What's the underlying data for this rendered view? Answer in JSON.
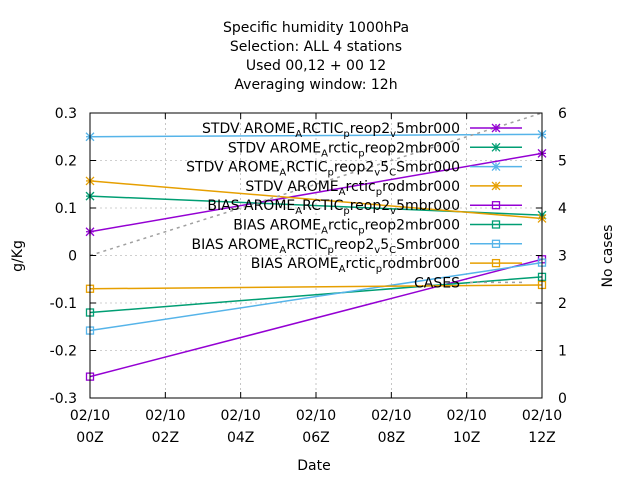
{
  "chart_data": {
    "type": "line",
    "title_lines": [
      "Specific humidity 1000hPa",
      "Selection: ALL      4 stations",
      "Used  00,12  + 00 12",
      "Averaging window: 12h"
    ],
    "xlabel": "Date",
    "ylabel": "g/Kg",
    "y2label": "No cases",
    "x_ticks": [
      {
        "x": 0,
        "line1": "02/10",
        "line2": "00Z"
      },
      {
        "x": 2,
        "line1": "02/10",
        "line2": "02Z"
      },
      {
        "x": 4,
        "line1": "02/10",
        "line2": "04Z"
      },
      {
        "x": 6,
        "line1": "02/10",
        "line2": "06Z"
      },
      {
        "x": 8,
        "line1": "02/10",
        "line2": "08Z"
      },
      {
        "x": 10,
        "line1": "02/10",
        "line2": "10Z"
      },
      {
        "x": 12,
        "line1": "02/10",
        "line2": "12Z"
      }
    ],
    "xlim": [
      0,
      12
    ],
    "ylim": [
      -0.3,
      0.3
    ],
    "y_ticks": [
      "-0.3",
      "-0.2",
      "-0.1",
      "0",
      "0.1",
      "0.2",
      "0.3"
    ],
    "y2lim": [
      0,
      6
    ],
    "y2_ticks": [
      "0",
      "1",
      "2",
      "3",
      "4",
      "5",
      "6"
    ],
    "grid": true,
    "legend_position": "top-right",
    "x": [
      0,
      12
    ],
    "series": [
      {
        "legend": [
          [
            "STDV AROME",
            ""
          ],
          [
            "A",
            "sub"
          ],
          [
            "RCTIC",
            ""
          ],
          [
            "p",
            "sub"
          ],
          [
            "reop2",
            ""
          ],
          [
            "v",
            "sub"
          ],
          [
            "5mbr000",
            ""
          ]
        ],
        "color": "#9400d3",
        "marker": "star",
        "values": [
          0.05,
          0.215
        ]
      },
      {
        "legend": [
          [
            "STDV AROME",
            ""
          ],
          [
            "A",
            "sub"
          ],
          [
            "rctic",
            ""
          ],
          [
            "p",
            "sub"
          ],
          [
            "reop2mbr000",
            ""
          ]
        ],
        "color": "#009e73",
        "marker": "star",
        "values": [
          0.125,
          0.085
        ]
      },
      {
        "legend": [
          [
            "STDV AROME",
            ""
          ],
          [
            "A",
            "sub"
          ],
          [
            "RCTIC",
            ""
          ],
          [
            "p",
            "sub"
          ],
          [
            "reop2",
            ""
          ],
          [
            "v",
            "sub"
          ],
          [
            "5",
            ""
          ],
          [
            "C",
            "sub"
          ],
          [
            "Smbr000",
            ""
          ]
        ],
        "color": "#56b4e9",
        "marker": "star",
        "values": [
          0.25,
          0.255
        ]
      },
      {
        "legend": [
          [
            "STDV AROME",
            ""
          ],
          [
            "A",
            "sub"
          ],
          [
            "rctic",
            ""
          ],
          [
            "p",
            "sub"
          ],
          [
            "rodmbr000",
            ""
          ]
        ],
        "color": "#e69f00",
        "marker": "star",
        "values": [
          0.157,
          0.078
        ]
      },
      {
        "legend": [
          [
            "BIAS AROME",
            ""
          ],
          [
            "A",
            "sub"
          ],
          [
            "RCTIC",
            ""
          ],
          [
            "p",
            "sub"
          ],
          [
            "reop2",
            ""
          ],
          [
            "v",
            "sub"
          ],
          [
            "5mbr000",
            ""
          ]
        ],
        "color": "#9400d3",
        "marker": "square",
        "values": [
          -0.255,
          -0.008
        ]
      },
      {
        "legend": [
          [
            "BIAS AROME",
            ""
          ],
          [
            "A",
            "sub"
          ],
          [
            "rctic",
            ""
          ],
          [
            "p",
            "sub"
          ],
          [
            "reop2mbr000",
            ""
          ]
        ],
        "color": "#009e73",
        "marker": "square",
        "values": [
          -0.12,
          -0.045
        ]
      },
      {
        "legend": [
          [
            "BIAS AROME",
            ""
          ],
          [
            "A",
            "sub"
          ],
          [
            "RCTIC",
            ""
          ],
          [
            "p",
            "sub"
          ],
          [
            "reop2",
            ""
          ],
          [
            "v",
            "sub"
          ],
          [
            "5",
            ""
          ],
          [
            "C",
            "sub"
          ],
          [
            "Smbr000",
            ""
          ]
        ],
        "color": "#56b4e9",
        "marker": "square",
        "values": [
          -0.158,
          -0.015
        ]
      },
      {
        "legend": [
          [
            "BIAS AROME",
            ""
          ],
          [
            "A",
            "sub"
          ],
          [
            "rctic",
            ""
          ],
          [
            "p",
            "sub"
          ],
          [
            "rodmbr000",
            ""
          ]
        ],
        "color": "#e69f00",
        "marker": "square",
        "values": [
          -0.07,
          -0.062
        ]
      },
      {
        "legend": [
          [
            "CASES",
            ""
          ]
        ],
        "color": "#a0a0a0",
        "marker": "none",
        "dashed": true,
        "axis": "y2",
        "values": [
          3,
          6
        ]
      }
    ]
  }
}
